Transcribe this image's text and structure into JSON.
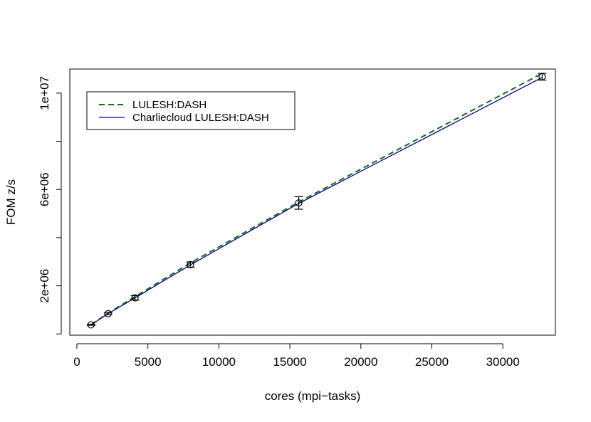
{
  "chart_data": {
    "type": "line",
    "title": "",
    "xlabel": "cores (mpi−tasks)",
    "ylabel": "FOM z/s",
    "xlim": [
      -500,
      33700
    ],
    "ylim": [
      -50000,
      11000000
    ],
    "x_ticks": [
      0,
      5000,
      10000,
      15000,
      20000,
      25000,
      30000
    ],
    "x_tick_labels": [
      "0",
      "5000",
      "10000",
      "15000",
      "20000",
      "25000",
      "30000"
    ],
    "y_ticks": [
      0,
      2000000,
      4000000,
      6000000,
      8000000,
      10000000
    ],
    "y_tick_labels": [
      "",
      "2e+06",
      "",
      "6e+06",
      "",
      "1e+07"
    ],
    "grid": false,
    "legend": {
      "placement": "top-left",
      "entries": [
        "LULESH:DASH",
        "Charliecloud LULESH:DASH"
      ]
    },
    "series": [
      {
        "name": "LULESH:DASH",
        "color": "#1a6b1a",
        "style": "dashed",
        "x": [
          1000,
          2197,
          4096,
          8000,
          15625,
          32768
        ],
        "y": [
          390000,
          860000,
          1550000,
          2950000,
          5480000,
          10820000
        ]
      },
      {
        "name": "Charliecloud LULESH:DASH",
        "color": "#000080",
        "style": "solid",
        "x": [
          1000,
          2197,
          4096,
          8000,
          15625,
          32768
        ],
        "y": [
          380000,
          840000,
          1500000,
          2870000,
          5420000,
          10650000
        ]
      }
    ],
    "error_bars": {
      "x": [
        1000,
        2197,
        4096,
        8000,
        15625,
        32768
      ],
      "y": [
        380000,
        840000,
        1500000,
        2880000,
        5440000,
        10680000
      ],
      "err": [
        20000,
        40000,
        90000,
        110000,
        260000,
        140000
      ]
    }
  }
}
